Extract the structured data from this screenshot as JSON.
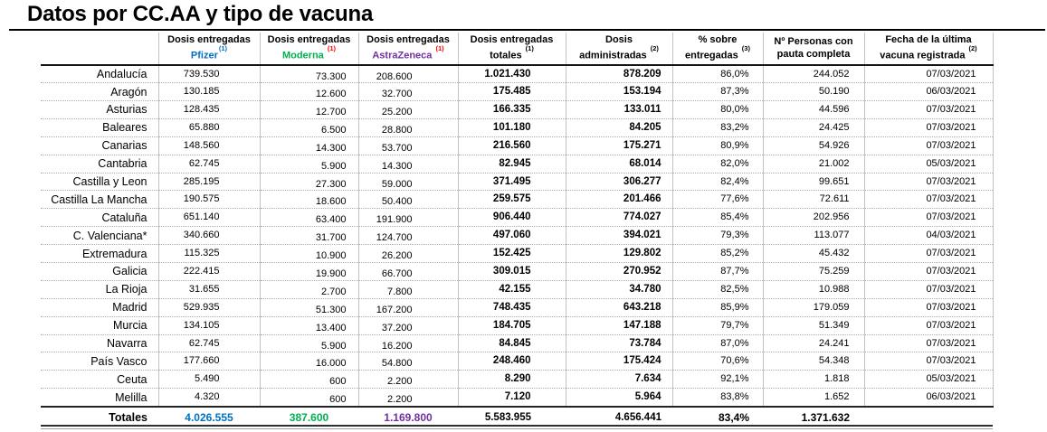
{
  "title": "Datos por CC.AA y tipo de vacuna",
  "colors": {
    "pfizer": "#0070C0",
    "moderna": "#00B050",
    "astrazeneca": "#7030A0",
    "footnote": "#FF0000"
  },
  "table": {
    "headers": {
      "region": "",
      "pfizer": {
        "line1": "Dosis entregadas",
        "line2": "Pfizer",
        "sup": "(1)"
      },
      "moderna": {
        "line1": "Dosis entregadas",
        "line2": "Moderna",
        "sup": "(1)"
      },
      "astrazeneca": {
        "line1": "Dosis entregadas",
        "line2": "AstraZeneca",
        "sup": "(1)"
      },
      "totales": {
        "line1": "Dosis entregadas",
        "line2": "totales",
        "sup": "(1)"
      },
      "administradas": {
        "line1": "Dosis",
        "line2": "administradas",
        "sup": "(2)"
      },
      "pct": {
        "line1": "% sobre",
        "line2": "entregadas",
        "sup": "(3)"
      },
      "personas": {
        "line1": "Nº Personas con",
        "line2": "pauta completa",
        "sup": ""
      },
      "fecha": {
        "line1": "Fecha de la última",
        "line2": "vacuna registrada",
        "sup": "(2)"
      }
    },
    "rows": [
      {
        "region": "Andalucía",
        "pfizer": "739.530",
        "moderna": "73.300",
        "astrazeneca": "208.600",
        "totales": "1.021.430",
        "administradas": "878.209",
        "pct": "86,0%",
        "personas": "244.052",
        "fecha": "07/03/2021"
      },
      {
        "region": "Aragón",
        "pfizer": "130.185",
        "moderna": "12.600",
        "astrazeneca": "32.700",
        "totales": "175.485",
        "administradas": "153.194",
        "pct": "87,3%",
        "personas": "50.190",
        "fecha": "06/03/2021"
      },
      {
        "region": "Asturias",
        "pfizer": "128.435",
        "moderna": "12.700",
        "astrazeneca": "25.200",
        "totales": "166.335",
        "administradas": "133.011",
        "pct": "80,0%",
        "personas": "44.596",
        "fecha": "07/03/2021"
      },
      {
        "region": "Baleares",
        "pfizer": "65.880",
        "moderna": "6.500",
        "astrazeneca": "28.800",
        "totales": "101.180",
        "administradas": "84.205",
        "pct": "83,2%",
        "personas": "24.425",
        "fecha": "07/03/2021"
      },
      {
        "region": "Canarias",
        "pfizer": "148.560",
        "moderna": "14.300",
        "astrazeneca": "53.700",
        "totales": "216.560",
        "administradas": "175.271",
        "pct": "80,9%",
        "personas": "54.926",
        "fecha": "07/03/2021"
      },
      {
        "region": "Cantabria",
        "pfizer": "62.745",
        "moderna": "5.900",
        "astrazeneca": "14.300",
        "totales": "82.945",
        "administradas": "68.014",
        "pct": "82,0%",
        "personas": "21.002",
        "fecha": "05/03/2021"
      },
      {
        "region": "Castilla y Leon",
        "pfizer": "285.195",
        "moderna": "27.300",
        "astrazeneca": "59.000",
        "totales": "371.495",
        "administradas": "306.277",
        "pct": "82,4%",
        "personas": "99.651",
        "fecha": "07/03/2021"
      },
      {
        "region": "Castilla La Mancha",
        "pfizer": "190.575",
        "moderna": "18.600",
        "astrazeneca": "50.400",
        "totales": "259.575",
        "administradas": "201.466",
        "pct": "77,6%",
        "personas": "72.611",
        "fecha": "07/03/2021"
      },
      {
        "region": "Cataluña",
        "pfizer": "651.140",
        "moderna": "63.400",
        "astrazeneca": "191.900",
        "totales": "906.440",
        "administradas": "774.027",
        "pct": "85,4%",
        "personas": "202.956",
        "fecha": "07/03/2021"
      },
      {
        "region": "C. Valenciana*",
        "pfizer": "340.660",
        "moderna": "31.700",
        "astrazeneca": "124.700",
        "totales": "497.060",
        "administradas": "394.021",
        "pct": "79,3%",
        "personas": "113.077",
        "fecha": "04/03/2021"
      },
      {
        "region": "Extremadura",
        "pfizer": "115.325",
        "moderna": "10.900",
        "astrazeneca": "26.200",
        "totales": "152.425",
        "administradas": "129.802",
        "pct": "85,2%",
        "personas": "45.432",
        "fecha": "07/03/2021"
      },
      {
        "region": "Galicia",
        "pfizer": "222.415",
        "moderna": "19.900",
        "astrazeneca": "66.700",
        "totales": "309.015",
        "administradas": "270.952",
        "pct": "87,7%",
        "personas": "75.259",
        "fecha": "07/03/2021"
      },
      {
        "region": "La Rioja",
        "pfizer": "31.655",
        "moderna": "2.700",
        "astrazeneca": "7.800",
        "totales": "42.155",
        "administradas": "34.780",
        "pct": "82,5%",
        "personas": "10.988",
        "fecha": "07/03/2021"
      },
      {
        "region": "Madrid",
        "pfizer": "529.935",
        "moderna": "51.300",
        "astrazeneca": "167.200",
        "totales": "748.435",
        "administradas": "643.218",
        "pct": "85,9%",
        "personas": "179.059",
        "fecha": "07/03/2021"
      },
      {
        "region": "Murcia",
        "pfizer": "134.105",
        "moderna": "13.400",
        "astrazeneca": "37.200",
        "totales": "184.705",
        "administradas": "147.188",
        "pct": "79,7%",
        "personas": "51.349",
        "fecha": "07/03/2021"
      },
      {
        "region": "Navarra",
        "pfizer": "62.745",
        "moderna": "5.900",
        "astrazeneca": "16.200",
        "totales": "84.845",
        "administradas": "73.784",
        "pct": "87,0%",
        "personas": "24.241",
        "fecha": "07/03/2021"
      },
      {
        "region": "País Vasco",
        "pfizer": "177.660",
        "moderna": "16.000",
        "astrazeneca": "54.800",
        "totales": "248.460",
        "administradas": "175.424",
        "pct": "70,6%",
        "personas": "54.348",
        "fecha": "07/03/2021"
      },
      {
        "region": "Ceuta",
        "pfizer": "5.490",
        "moderna": "600",
        "astrazeneca": "2.200",
        "totales": "8.290",
        "administradas": "7.634",
        "pct": "92,1%",
        "personas": "1.818",
        "fecha": "05/03/2021"
      },
      {
        "region": "Melilla",
        "pfizer": "4.320",
        "moderna": "600",
        "astrazeneca": "2.200",
        "totales": "7.120",
        "administradas": "5.964",
        "pct": "83,8%",
        "personas": "1.652",
        "fecha": "06/03/2021"
      }
    ],
    "totals": {
      "label": "Totales",
      "pfizer": "4.026.555",
      "moderna": "387.600",
      "astrazeneca": "1.169.800",
      "totales": "5.583.955",
      "administradas": "4.656.441",
      "pct": "83,4%",
      "personas": "1.371.632",
      "fecha": ""
    }
  }
}
